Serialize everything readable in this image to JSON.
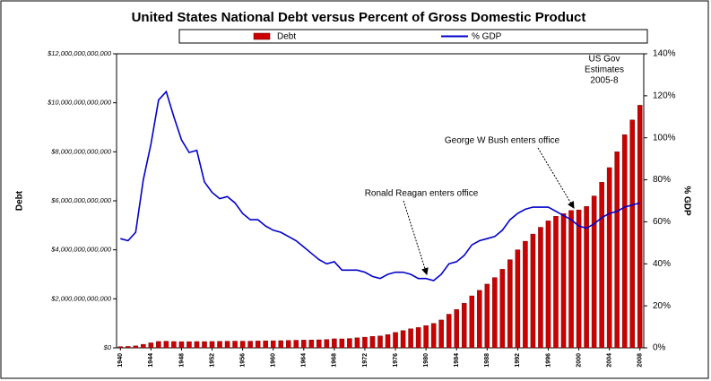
{
  "chart_data": {
    "type": "bar_line",
    "title": "United States National Debt versus Percent of Gross Domestic Product",
    "y_label": "Debt",
    "y2_label": "% GDP",
    "categories": [
      "1940",
      null,
      null,
      null,
      "1944",
      null,
      null,
      null,
      "1948",
      null,
      null,
      null,
      "1952",
      null,
      null,
      null,
      "1956",
      null,
      null,
      null,
      "1960",
      null,
      null,
      null,
      "1964",
      null,
      null,
      null,
      "1968",
      null,
      null,
      null,
      "1972",
      null,
      null,
      null,
      "1976",
      null,
      null,
      null,
      "1980",
      null,
      null,
      null,
      "1984",
      null,
      null,
      null,
      "1988",
      null,
      null,
      null,
      "1992",
      null,
      null,
      null,
      "1996",
      null,
      null,
      null,
      "2000",
      null,
      null,
      null,
      "2004",
      null,
      null,
      null,
      "2008"
    ],
    "series": [
      {
        "name": "Debt",
        "type": "bar",
        "color": "#cc0000",
        "values": [
          50700000000,
          57500000000,
          79200000000,
          142600000000,
          204100000000,
          260100000000,
          271000000000,
          257100000000,
          252000000000,
          252600000000,
          256900000000,
          255300000000,
          259100000000,
          266000000000,
          270800000000,
          274400000000,
          272700000000,
          272300000000,
          279700000000,
          287500000000,
          290500000000,
          292600000000,
          302900000000,
          310300000000,
          316100000000,
          322300000000,
          328500000000,
          340400000000,
          368700000000,
          365800000000,
          380900000000,
          408200000000,
          435900000000,
          466300000000,
          483900000000,
          541900000000,
          629000000000,
          706400000000,
          776600000000,
          829500000000,
          909000000000,
          994800000000,
          1137300000000,
          1371700000000,
          1564600000000,
          1817400000000,
          2120500000000,
          2346000000000,
          2601100000000,
          2867800000000,
          3206300000000,
          3598200000000,
          4001800000000,
          4351000000000,
          4643300000000,
          4920600000000,
          5181500000000,
          5369200000000,
          5478200000000,
          5605500000000,
          5628700000000,
          5769900000000,
          6198400000000,
          6760000000000,
          7354700000000,
          8000000000000,
          8700000000000,
          9300000000000,
          9900000000000
        ]
      },
      {
        "name": "% GDP",
        "type": "line",
        "axis": "y2",
        "color": "#0000cc",
        "values": [
          52,
          51,
          55,
          80,
          97,
          118,
          122,
          110,
          99,
          93,
          94,
          79,
          74,
          71,
          72,
          69,
          64,
          61,
          61,
          58,
          56,
          55,
          53,
          51,
          48,
          45,
          42,
          40,
          41,
          37,
          37,
          37,
          36,
          34,
          33,
          35,
          36,
          36,
          35,
          33,
          33,
          32,
          35,
          40,
          41,
          44,
          49,
          51,
          52,
          53,
          56,
          61,
          64,
          66,
          67,
          67,
          67,
          65,
          63,
          61,
          58,
          57,
          59,
          62,
          64,
          65,
          67,
          68,
          69
        ]
      }
    ],
    "ylim": [
      0,
      12000000000000
    ],
    "yticks": [
      {
        "value": 0,
        "label": "$0"
      },
      {
        "value": 2000000000000,
        "label": "$2,000,000,000,000"
      },
      {
        "value": 4000000000000,
        "label": "$4,000,000,000,000"
      },
      {
        "value": 6000000000000,
        "label": "$6,000,000,000,000"
      },
      {
        "value": 8000000000000,
        "label": "$8,000,000,000,000"
      },
      {
        "value": 10000000000000,
        "label": "$10,000,000,000,000"
      },
      {
        "value": 12000000000000,
        "label": "$12,000,000,000,000"
      }
    ],
    "y2lim": [
      0,
      140
    ],
    "y2ticks": [
      {
        "value": 0,
        "label": "0%"
      },
      {
        "value": 20,
        "label": "20%"
      },
      {
        "value": 40,
        "label": "40%"
      },
      {
        "value": 60,
        "label": "60%"
      },
      {
        "value": 80,
        "label": "80%"
      },
      {
        "value": 100,
        "label": "100%"
      },
      {
        "value": 120,
        "label": "120%"
      },
      {
        "value": 140,
        "label": "140%"
      }
    ],
    "annotations": [
      {
        "text": [
          "US Gov",
          "Estimates",
          "2005-8"
        ]
      },
      {
        "text": "George W Bush enters office"
      },
      {
        "text": "Ronald Reagan enters office"
      }
    ]
  }
}
